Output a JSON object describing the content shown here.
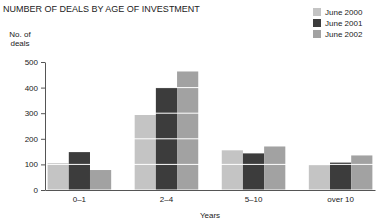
{
  "chart_data": {
    "type": "bar",
    "title": "NUMBER OF DEALS BY AGE OF INVESTMENT",
    "x_label": "Years",
    "y_label": "No. of deals",
    "categories": [
      "0–1",
      "2–4",
      "5–10",
      "over 10"
    ],
    "series": [
      {
        "name": "June 2000",
        "color": "#c4c4c4",
        "values": [
          105,
          293,
          155,
          97
        ]
      },
      {
        "name": "June 2001",
        "color": "#3c3c3c",
        "values": [
          148,
          400,
          143,
          107
        ]
      },
      {
        "name": "June 2002",
        "color": "#a2a2a2",
        "values": [
          78,
          463,
          170,
          135
        ]
      }
    ],
    "ylim": [
      0,
      500
    ],
    "yticks": [
      0,
      100,
      200,
      300,
      400,
      500
    ],
    "grid": true,
    "legend": "top-right"
  }
}
